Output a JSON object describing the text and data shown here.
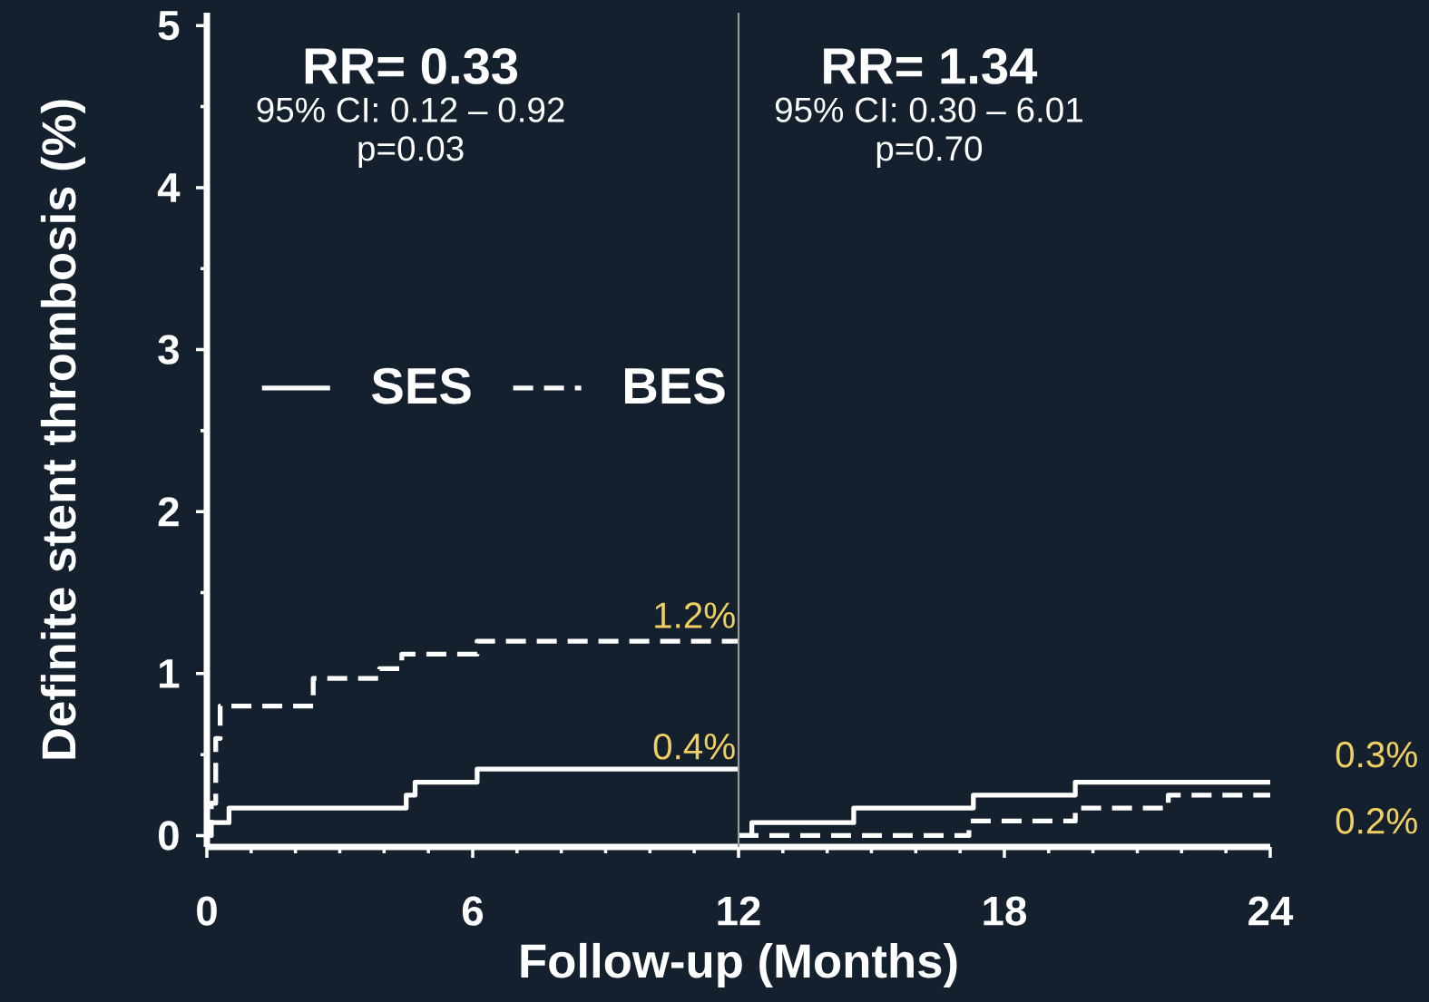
{
  "chart_data": {
    "type": "step",
    "xlabel": "Follow-up (Months)",
    "ylabel": "Definite stent thrombosis (%)",
    "xlim": [
      0,
      24
    ],
    "ylim": [
      -0.07,
      5.08
    ],
    "xticks": [
      0,
      6,
      12,
      18,
      24
    ],
    "yticks": [
      0,
      1,
      2,
      3,
      4,
      5
    ],
    "legend": "left",
    "series": [
      {
        "name": "SES",
        "color": "#ffffff",
        "line_style": "solid",
        "x": [
          0,
          0.5,
          4.5,
          4.7,
          6.1,
          12,
          null,
          12,
          12.3,
          14.6,
          17.3,
          19.6,
          24
        ],
        "values": [
          0.08,
          0.17,
          0.25,
          0.33,
          0.41,
          0.41,
          null,
          0,
          0.08,
          0.17,
          0.25,
          0.33,
          0.33
        ]
      },
      {
        "name": "BES",
        "color": "#ffffff",
        "line_style": "dashed",
        "x": [
          0,
          0.1,
          0.2,
          0.3,
          2.4,
          3.9,
          4.4,
          6.1,
          12,
          null,
          12,
          17.2,
          19.6,
          21.7,
          24
        ],
        "values": [
          0,
          0.2,
          0.6,
          0.8,
          0.97,
          1.03,
          1.12,
          1.2,
          1.2,
          null,
          0,
          0.09,
          0.17,
          0.25,
          0.25
        ]
      }
    ],
    "ref_lines": [
      {
        "axis": "x",
        "value": 12,
        "color": "#9a9a9a"
      }
    ],
    "annotations": [
      "RR= 0.33",
      "95% CI: 0.12 – 0.92",
      "p=0.03",
      "RR= 1.34",
      "95% CI: 0.30 – 6.01",
      "p=0.70",
      "1.2%",
      "0.4%",
      "0.3%",
      "0.2%"
    ]
  }
}
